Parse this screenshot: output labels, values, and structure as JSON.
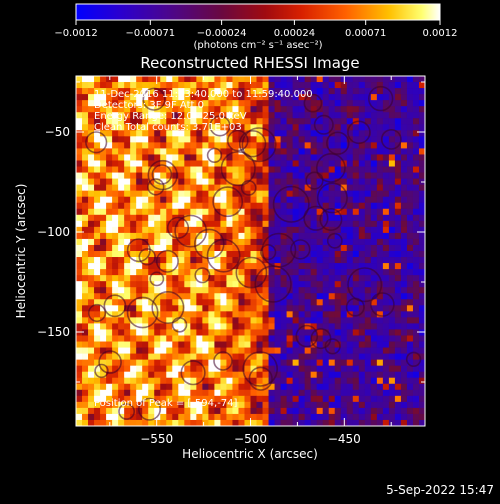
{
  "chart_data": {
    "type": "heatmap",
    "title": "Reconstructed RHESSI Image",
    "xlabel": "Heliocentric X (arcsec)",
    "ylabel": "Heliocentric Y (arcsec)",
    "xlim": [
      -593,
      -407
    ],
    "ylim": [
      -197,
      -22
    ],
    "x_ticks": [
      -550,
      -500,
      -450
    ],
    "y_ticks": [
      -50,
      -100,
      -150
    ],
    "x_tick_labels": [
      "−550",
      "−500",
      "−450"
    ],
    "y_tick_labels": [
      "−50",
      "−100",
      "−150"
    ],
    "colorbar": {
      "range": [
        -0.0012,
        0.0012
      ],
      "ticks": [
        -0.0012,
        -0.00071,
        -0.00024,
        0.00024,
        0.00071,
        0.0012
      ],
      "tick_labels": [
        "−0.0012",
        "−0.00071",
        "−0.00024",
        "0.00024",
        "0.00071",
        "0.0012"
      ],
      "units": "(photons cm⁻² s⁻¹ asec⁻²)",
      "colors": [
        "#0000ff",
        "#3a00a8",
        "#5a0a6a",
        "#8c0a1a",
        "#d01000",
        "#ff5a00",
        "#ffc800",
        "#ffff90",
        "#ffffff"
      ]
    },
    "annotations": [
      "11-Dec-2016 11:53:40.000 to 11:59:40.000",
      "Detectors: 3F 9F  Att 0",
      "Energy Range: 12.0 - 25.0 keV",
      "Clean    Total counts: 3.71E+03"
    ],
    "peak_label": "Position of Peak = [-594,-74]",
    "peak_position": [
      -594,
      -74
    ]
  },
  "footer": {
    "date": "5-Sep-2022 15:47"
  }
}
